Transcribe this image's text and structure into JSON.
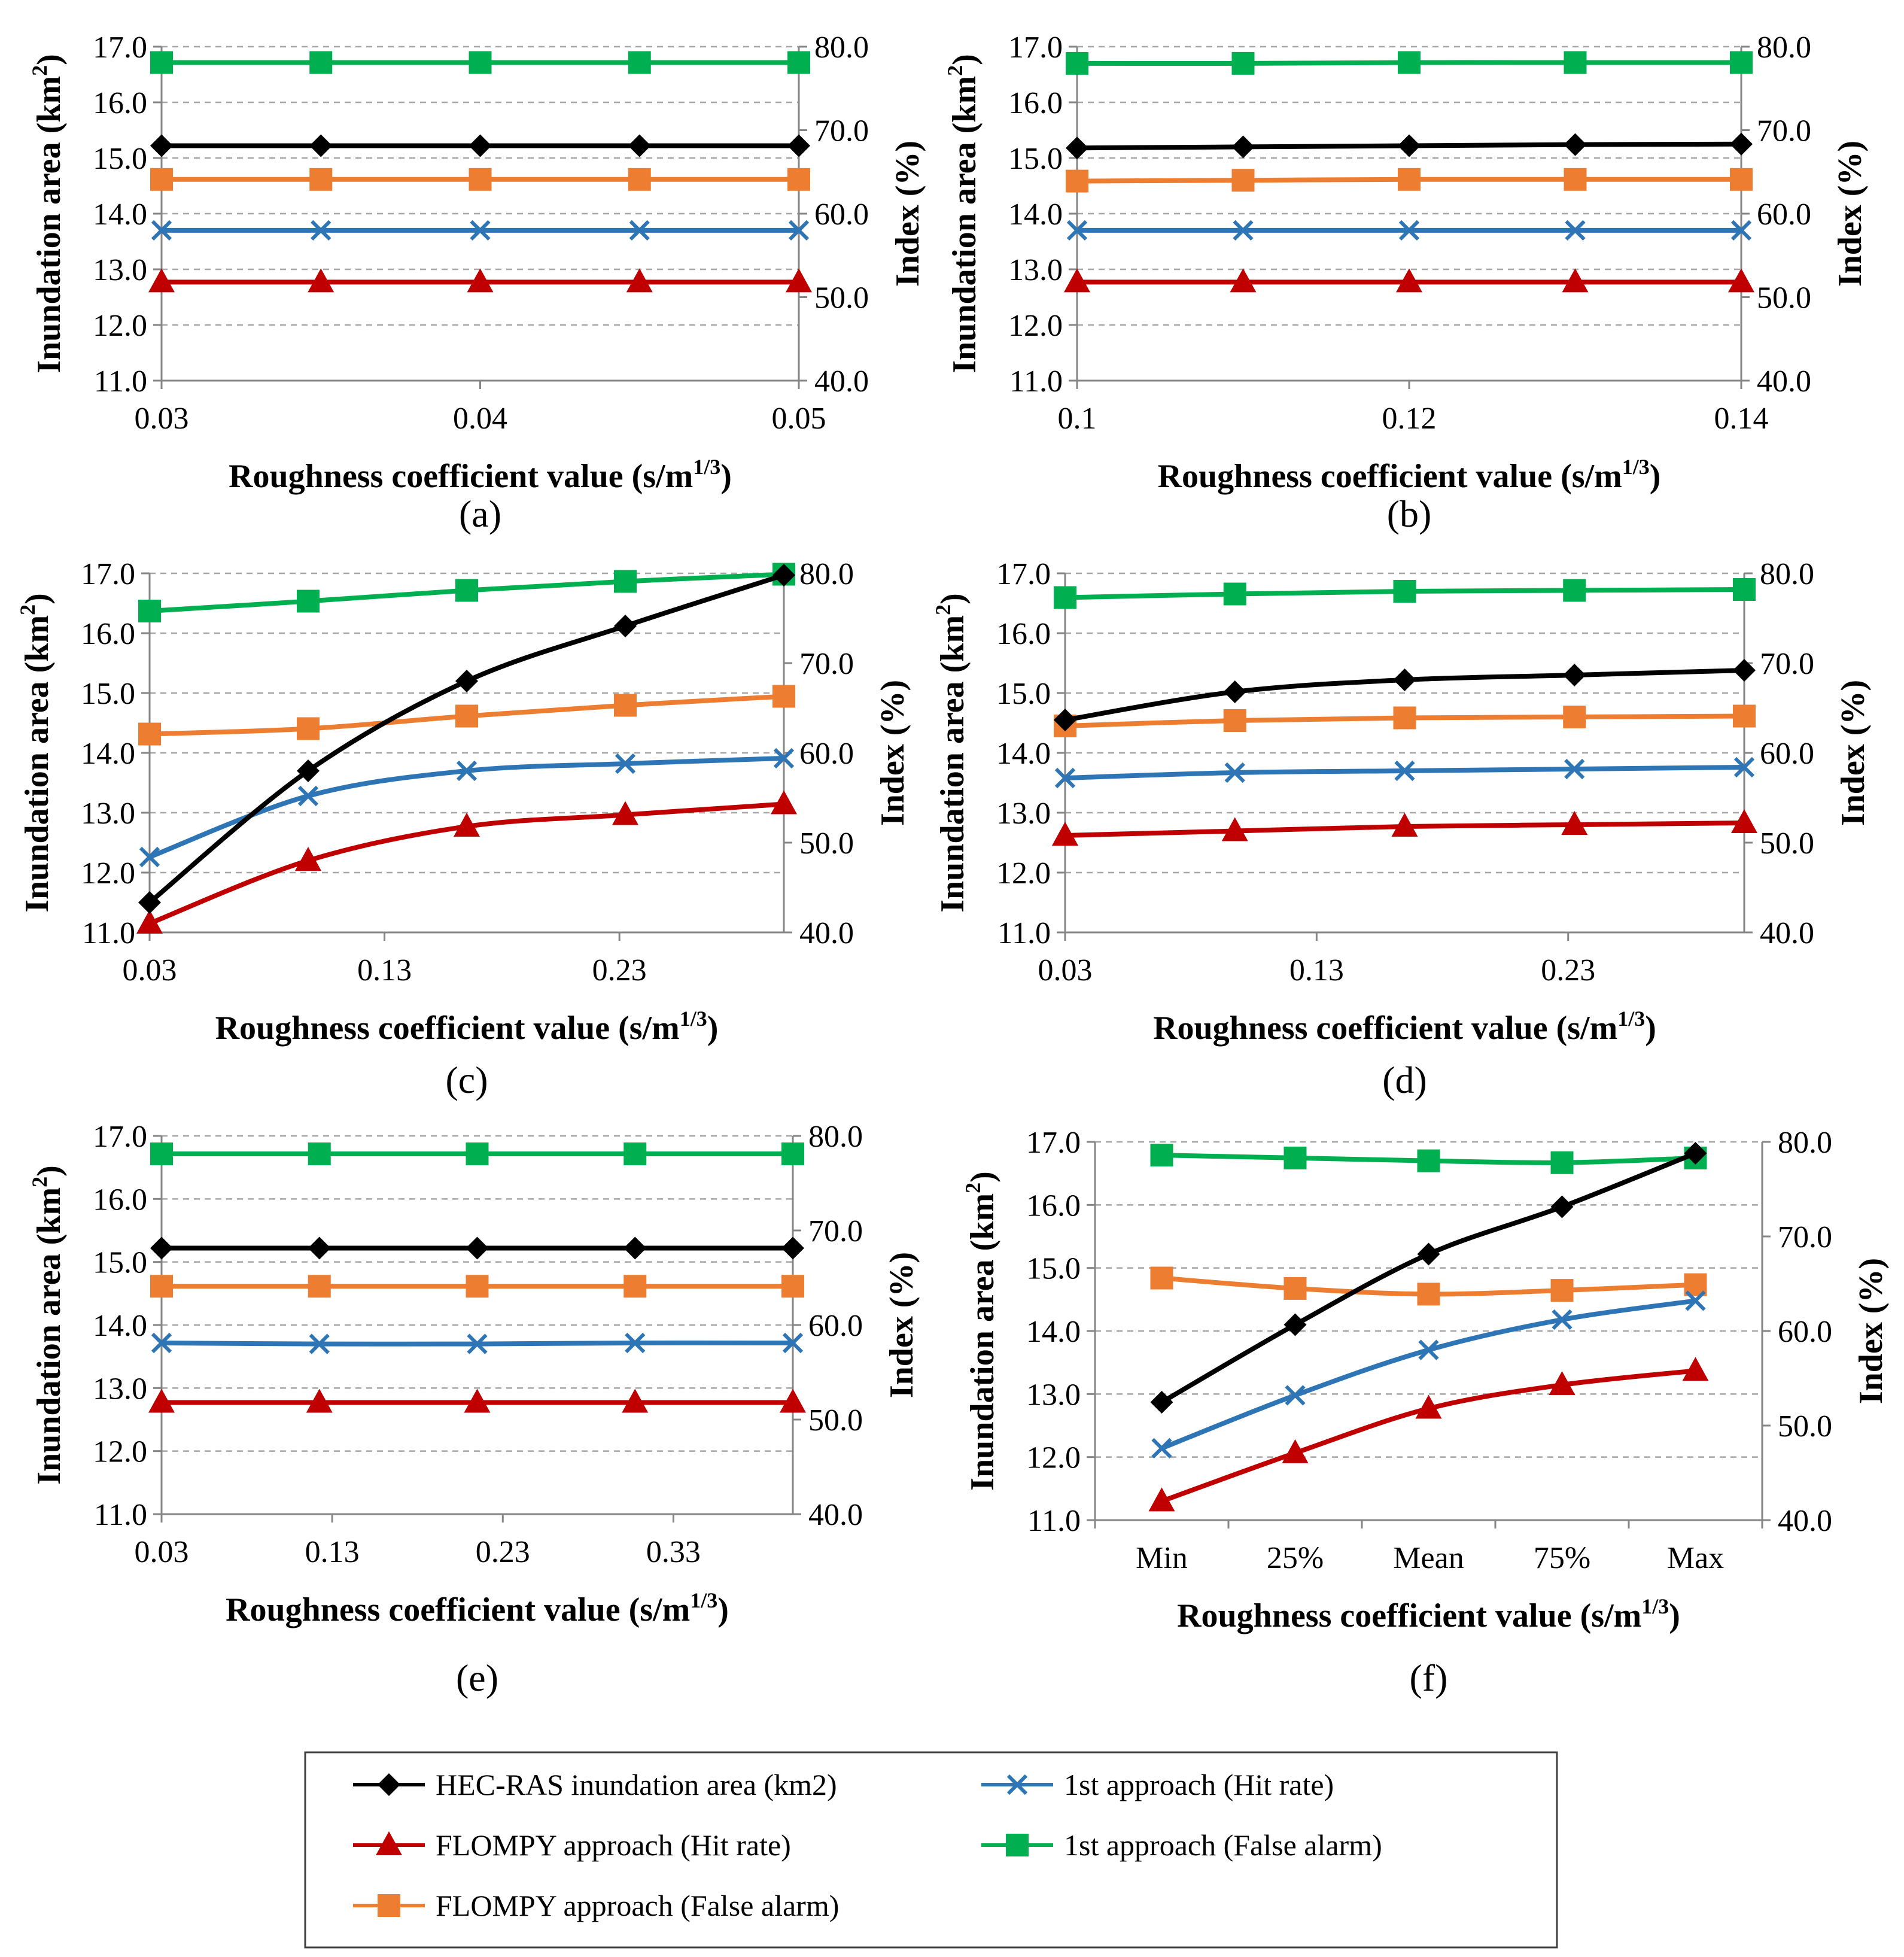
{
  "figure": {
    "panel_labels": [
      "(a)",
      "(b)",
      "(c)",
      "(d)",
      "(e)",
      "(f)"
    ]
  },
  "legend": {
    "entries": [
      {
        "key": "hec",
        "label": "HEC-RAS inundation area (km2)",
        "color": "#000000",
        "marker": "diamond"
      },
      {
        "key": "first_hit",
        "label": "1st approach (Hit rate)",
        "color": "#2e75b6",
        "marker": "x"
      },
      {
        "key": "flompy_hit",
        "label": "FLOMPY approach (Hit rate)",
        "color": "#c00000",
        "marker": "triangle"
      },
      {
        "key": "first_fa",
        "label": "1st approach (False alarm)",
        "color": "#00b050",
        "marker": "square"
      },
      {
        "key": "flompy_fa",
        "label": "FLOMPY approach (False alarm)",
        "color": "#ed7d31",
        "marker": "square"
      }
    ]
  },
  "chart_data": [
    {
      "type": "line",
      "panel": "(a)",
      "xlabel": "Roughness coefficient value (s/m",
      "xlabel_sup": "1/3",
      "xlabel_end": ")",
      "ylabel": "Inundation  area (km",
      "ylabel_sup": "2",
      "ylabel_end": ")",
      "y2label": "Index (%)",
      "x_kind": "numeric",
      "xlim": [
        0.03,
        0.05
      ],
      "xticks": [
        0.03,
        0.04,
        0.05
      ],
      "xtick_labels": [
        "0.03",
        "0.04",
        "0.05"
      ],
      "x": [
        0.03,
        0.035,
        0.04,
        0.045,
        0.05
      ],
      "ylim": [
        11.0,
        17.0
      ],
      "yticks": [
        "11.0",
        "12.0",
        "13.0",
        "14.0",
        "15.0",
        "16.0",
        "17.0"
      ],
      "y2lim": [
        40.0,
        80.0
      ],
      "y2ticks": [
        "40.0",
        "50.0",
        "60.0",
        "70.0",
        "80.0"
      ],
      "grid": true,
      "series": [
        {
          "key": "hec",
          "axis": "left",
          "values": [
            15.22,
            15.22,
            15.22,
            15.22,
            15.22
          ]
        },
        {
          "key": "first_hit",
          "axis": "right",
          "values": [
            58.0,
            58.0,
            58.0,
            58.0,
            58.0
          ]
        },
        {
          "key": "flompy_hit",
          "axis": "right",
          "values": [
            51.8,
            51.8,
            51.8,
            51.8,
            51.8
          ]
        },
        {
          "key": "first_fa",
          "axis": "right",
          "values": [
            78.1,
            78.1,
            78.1,
            78.1,
            78.1
          ]
        },
        {
          "key": "flompy_fa",
          "axis": "right",
          "values": [
            64.1,
            64.1,
            64.1,
            64.1,
            64.1
          ]
        }
      ]
    },
    {
      "type": "line",
      "panel": "(b)",
      "xlabel": "Roughness coefficient value (s/m",
      "xlabel_sup": "1/3",
      "xlabel_end": ")",
      "ylabel": "Inundation  area (km",
      "ylabel_sup": "2",
      "ylabel_end": ")",
      "y2label": "Index (%)",
      "x_kind": "numeric",
      "xlim": [
        0.1,
        0.14
      ],
      "xticks": [
        0.1,
        0.12,
        0.14
      ],
      "xtick_labels": [
        "0.1",
        "0.12",
        "0.14"
      ],
      "x": [
        0.1,
        0.11,
        0.12,
        0.13,
        0.14
      ],
      "ylim": [
        11.0,
        17.0
      ],
      "yticks": [
        "11.0",
        "12.0",
        "13.0",
        "14.0",
        "15.0",
        "16.0",
        "17.0"
      ],
      "y2lim": [
        40.0,
        80.0
      ],
      "y2ticks": [
        "40.0",
        "50.0",
        "60.0",
        "70.0",
        "80.0"
      ],
      "grid": true,
      "series": [
        {
          "key": "hec",
          "axis": "left",
          "values": [
            15.18,
            15.2,
            15.22,
            15.24,
            15.25
          ]
        },
        {
          "key": "first_hit",
          "axis": "right",
          "values": [
            58.0,
            58.0,
            58.0,
            58.0,
            58.0
          ]
        },
        {
          "key": "flompy_hit",
          "axis": "right",
          "values": [
            51.8,
            51.8,
            51.8,
            51.8,
            51.8
          ]
        },
        {
          "key": "first_fa",
          "axis": "right",
          "values": [
            78.0,
            78.0,
            78.1,
            78.1,
            78.1
          ]
        },
        {
          "key": "flompy_fa",
          "axis": "right",
          "values": [
            63.9,
            64.0,
            64.1,
            64.1,
            64.1
          ]
        }
      ]
    },
    {
      "type": "line",
      "panel": "(c)",
      "xlabel": "Roughness coefficient value (s/m",
      "xlabel_sup": "1/3",
      "xlabel_end": ")",
      "ylabel": "Inundation  area (km",
      "ylabel_sup": "2",
      "ylabel_end": ")",
      "y2label": "Index (%)",
      "x_kind": "numeric",
      "xlim": [
        0.03,
        0.3
      ],
      "xticks": [
        0.03,
        0.13,
        0.23
      ],
      "xtick_labels": [
        "0.03",
        "0.13",
        "0.23"
      ],
      "x": [
        0.03,
        0.0975,
        0.165,
        0.2325,
        0.3
      ],
      "ylim": [
        11.0,
        17.0
      ],
      "yticks": [
        "11.0",
        "12.0",
        "13.0",
        "14.0",
        "15.0",
        "16.0",
        "17.0"
      ],
      "y2lim": [
        40.0,
        80.0
      ],
      "y2ticks": [
        "40.0",
        "50.0",
        "60.0",
        "70.0",
        "80.0"
      ],
      "grid": true,
      "series": [
        {
          "key": "hec",
          "axis": "left",
          "values": [
            11.5,
            13.7,
            15.2,
            16.12,
            16.97
          ]
        },
        {
          "key": "first_hit",
          "axis": "right",
          "values": [
            48.4,
            55.2,
            58.0,
            58.8,
            59.4
          ]
        },
        {
          "key": "flompy_hit",
          "axis": "right",
          "values": [
            41.0,
            48.0,
            51.8,
            53.1,
            54.3
          ]
        },
        {
          "key": "first_fa",
          "axis": "right",
          "values": [
            75.8,
            76.9,
            78.1,
            79.1,
            79.9
          ]
        },
        {
          "key": "flompy_fa",
          "axis": "right",
          "values": [
            62.1,
            62.7,
            64.1,
            65.3,
            66.3
          ]
        }
      ]
    },
    {
      "type": "line",
      "panel": "(d)",
      "xlabel": "Roughness coefficient value (s/m",
      "xlabel_sup": "1/3",
      "xlabel_end": ")",
      "ylabel": "Inundation  area (km",
      "ylabel_sup": "2",
      "ylabel_end": ")",
      "y2label": "Index (%)",
      "x_kind": "numeric",
      "xlim": [
        0.03,
        0.3
      ],
      "xticks": [
        0.03,
        0.13,
        0.23
      ],
      "xtick_labels": [
        "0.03",
        "0.13",
        "0.23"
      ],
      "x": [
        0.03,
        0.0975,
        0.165,
        0.2325,
        0.3
      ],
      "ylim": [
        11.0,
        17.0
      ],
      "yticks": [
        "11.0",
        "12.0",
        "13.0",
        "14.0",
        "15.0",
        "16.0",
        "17.0"
      ],
      "y2lim": [
        40.0,
        80.0
      ],
      "y2ticks": [
        "40.0",
        "50.0",
        "60.0",
        "70.0",
        "80.0"
      ],
      "grid": true,
      "series": [
        {
          "key": "hec",
          "axis": "left",
          "values": [
            14.55,
            15.02,
            15.22,
            15.3,
            15.38
          ]
        },
        {
          "key": "first_hit",
          "axis": "right",
          "values": [
            57.2,
            57.8,
            58.0,
            58.2,
            58.4
          ]
        },
        {
          "key": "flompy_hit",
          "axis": "right",
          "values": [
            50.8,
            51.3,
            51.8,
            52.0,
            52.2
          ]
        },
        {
          "key": "first_fa",
          "axis": "right",
          "values": [
            77.3,
            77.7,
            78.0,
            78.1,
            78.2
          ]
        },
        {
          "key": "flompy_fa",
          "axis": "right",
          "values": [
            63.0,
            63.6,
            63.9,
            64.0,
            64.1
          ]
        }
      ]
    },
    {
      "type": "line",
      "panel": "(e)",
      "xlabel": "Roughness coefficient value (s/m",
      "xlabel_sup": "1/3",
      "xlabel_end": ")",
      "ylabel": "Inundation  area (km",
      "ylabel_sup": "2",
      "ylabel_end": ")",
      "y2label": "Index (%)",
      "x_kind": "numeric",
      "xlim": [
        0.03,
        0.4
      ],
      "xticks": [
        0.03,
        0.13,
        0.23,
        0.33
      ],
      "xtick_labels": [
        "0.03",
        "0.13",
        "0.23",
        "0.33"
      ],
      "x": [
        0.03,
        0.1225,
        0.215,
        0.3075,
        0.4
      ],
      "ylim": [
        11.0,
        17.0
      ],
      "yticks": [
        "11.0",
        "12.0",
        "13.0",
        "14.0",
        "15.0",
        "16.0",
        "17.0"
      ],
      "y2lim": [
        40.0,
        80.0
      ],
      "y2ticks": [
        "40.0",
        "50.0",
        "60.0",
        "70.0",
        "80.0"
      ],
      "grid": true,
      "series": [
        {
          "key": "hec",
          "axis": "left",
          "values": [
            15.22,
            15.22,
            15.22,
            15.22,
            15.22
          ]
        },
        {
          "key": "first_hit",
          "axis": "right",
          "values": [
            58.1,
            58.0,
            58.0,
            58.1,
            58.1
          ]
        },
        {
          "key": "flompy_hit",
          "axis": "right",
          "values": [
            51.8,
            51.8,
            51.8,
            51.8,
            51.8
          ]
        },
        {
          "key": "first_fa",
          "axis": "right",
          "values": [
            78.1,
            78.1,
            78.1,
            78.1,
            78.1
          ]
        },
        {
          "key": "flompy_fa",
          "axis": "right",
          "values": [
            64.1,
            64.1,
            64.1,
            64.1,
            64.1
          ]
        }
      ]
    },
    {
      "type": "line",
      "panel": "(f)",
      "xlabel": "Roughness coefficient value (s/m",
      "xlabel_sup": "1/3",
      "xlabel_end": ")",
      "ylabel": "Inundation  area (km",
      "ylabel_sup": "2",
      "ylabel_end": ")",
      "y2label": "Index (%)",
      "x_kind": "categorical",
      "categories": [
        "Min",
        "25%",
        "Mean",
        "75%",
        "Max"
      ],
      "ylim": [
        11.0,
        17.0
      ],
      "yticks": [
        "11.0",
        "12.0",
        "13.0",
        "14.0",
        "15.0",
        "16.0",
        "17.0"
      ],
      "y2lim": [
        40.0,
        80.0
      ],
      "y2ticks": [
        "40.0",
        "50.0",
        "60.0",
        "70.0",
        "80.0"
      ],
      "grid": true,
      "series": [
        {
          "key": "hec",
          "axis": "left",
          "values": [
            12.87,
            14.1,
            15.22,
            15.97,
            16.82
          ]
        },
        {
          "key": "first_hit",
          "axis": "right",
          "values": [
            47.6,
            53.2,
            58.0,
            61.2,
            63.2
          ]
        },
        {
          "key": "flompy_hit",
          "axis": "right",
          "values": [
            42.0,
            47.1,
            51.8,
            54.3,
            55.8
          ]
        },
        {
          "key": "first_fa",
          "axis": "right",
          "values": [
            78.6,
            78.3,
            78.0,
            77.8,
            78.3
          ]
        },
        {
          "key": "flompy_fa",
          "axis": "right",
          "values": [
            65.6,
            64.5,
            63.9,
            64.3,
            64.9
          ]
        }
      ]
    }
  ]
}
